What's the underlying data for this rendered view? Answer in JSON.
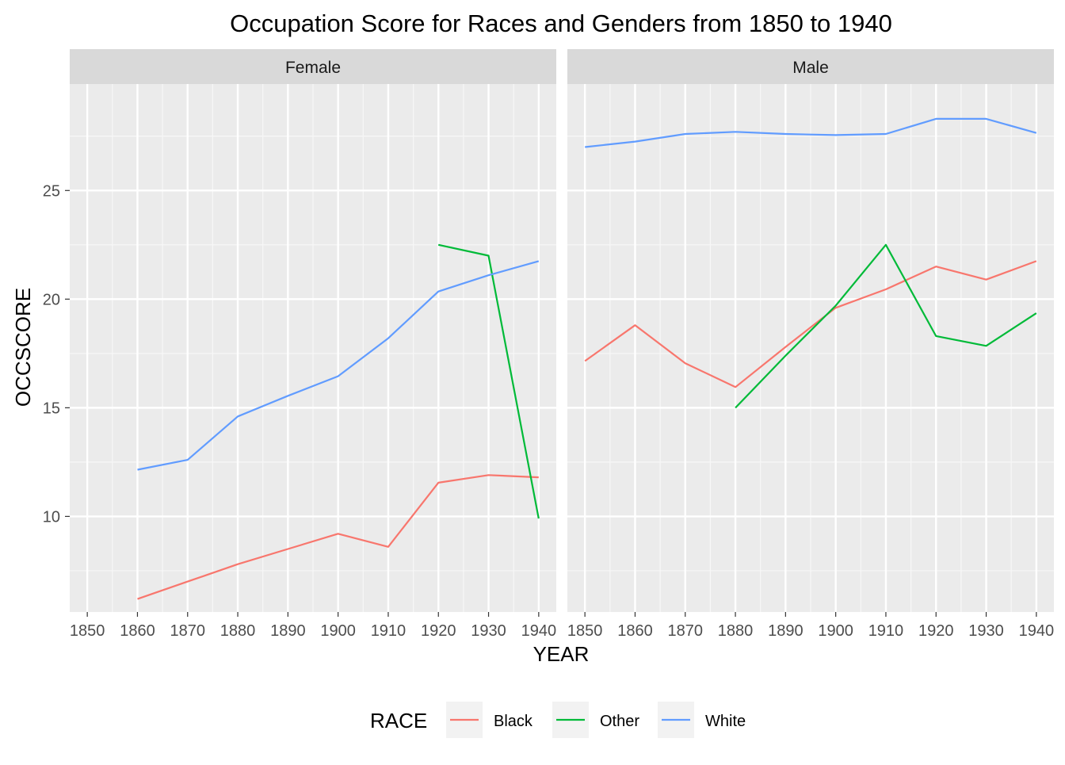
{
  "chart_data": {
    "type": "line",
    "title": "Occupation Score for Races and Genders from 1850 to 1940",
    "xlabel": "YEAR",
    "ylabel": "OCCSCORE",
    "x_ticks": [
      1850,
      1860,
      1870,
      1880,
      1890,
      1900,
      1910,
      1920,
      1930,
      1940
    ],
    "y_ticks": [
      10,
      15,
      20,
      25
    ],
    "xlim": [
      1846.5,
      1943.5
    ],
    "ylim": [
      5.6,
      29.9
    ],
    "grid": true,
    "legend": {
      "title": "RACE",
      "position": "bottom",
      "entries": [
        {
          "name": "Black",
          "color": "#F8766D"
        },
        {
          "name": "Other",
          "color": "#00BA38"
        },
        {
          "name": "White",
          "color": "#619CFF"
        }
      ]
    },
    "facets": [
      {
        "label": "Female",
        "series": [
          {
            "name": "Black",
            "color": "#F8766D",
            "x": [
              1860,
              1870,
              1880,
              1890,
              1900,
              1910,
              1920,
              1930,
              1940
            ],
            "y": [
              6.2,
              7.0,
              7.8,
              8.5,
              9.2,
              8.6,
              11.55,
              11.9,
              11.8
            ]
          },
          {
            "name": "Other",
            "color": "#00BA38",
            "x": [
              1920,
              1930,
              1940
            ],
            "y": [
              22.5,
              22.0,
              9.9
            ]
          },
          {
            "name": "White",
            "color": "#619CFF",
            "x": [
              1860,
              1870,
              1880,
              1890,
              1900,
              1910,
              1920,
              1930,
              1940
            ],
            "y": [
              12.15,
              12.6,
              14.6,
              15.55,
              16.45,
              18.2,
              20.35,
              21.1,
              21.75
            ]
          }
        ]
      },
      {
        "label": "Male",
        "series": [
          {
            "name": "Black",
            "color": "#F8766D",
            "x": [
              1850,
              1860,
              1870,
              1880,
              1890,
              1900,
              1910,
              1920,
              1930,
              1940
            ],
            "y": [
              17.15,
              18.8,
              17.05,
              15.95,
              17.8,
              19.6,
              20.45,
              21.5,
              20.9,
              21.75
            ]
          },
          {
            "name": "Other",
            "color": "#00BA38",
            "x": [
              1880,
              1890,
              1900,
              1910,
              1920,
              1930,
              1940
            ],
            "y": [
              15.0,
              17.4,
              19.7,
              22.5,
              18.3,
              17.85,
              19.35
            ]
          },
          {
            "name": "White",
            "color": "#619CFF",
            "x": [
              1850,
              1860,
              1870,
              1880,
              1890,
              1900,
              1910,
              1920,
              1930,
              1940
            ],
            "y": [
              27.0,
              27.25,
              27.6,
              27.7,
              27.6,
              27.55,
              27.6,
              28.3,
              28.3,
              27.65
            ]
          }
        ]
      }
    ]
  }
}
